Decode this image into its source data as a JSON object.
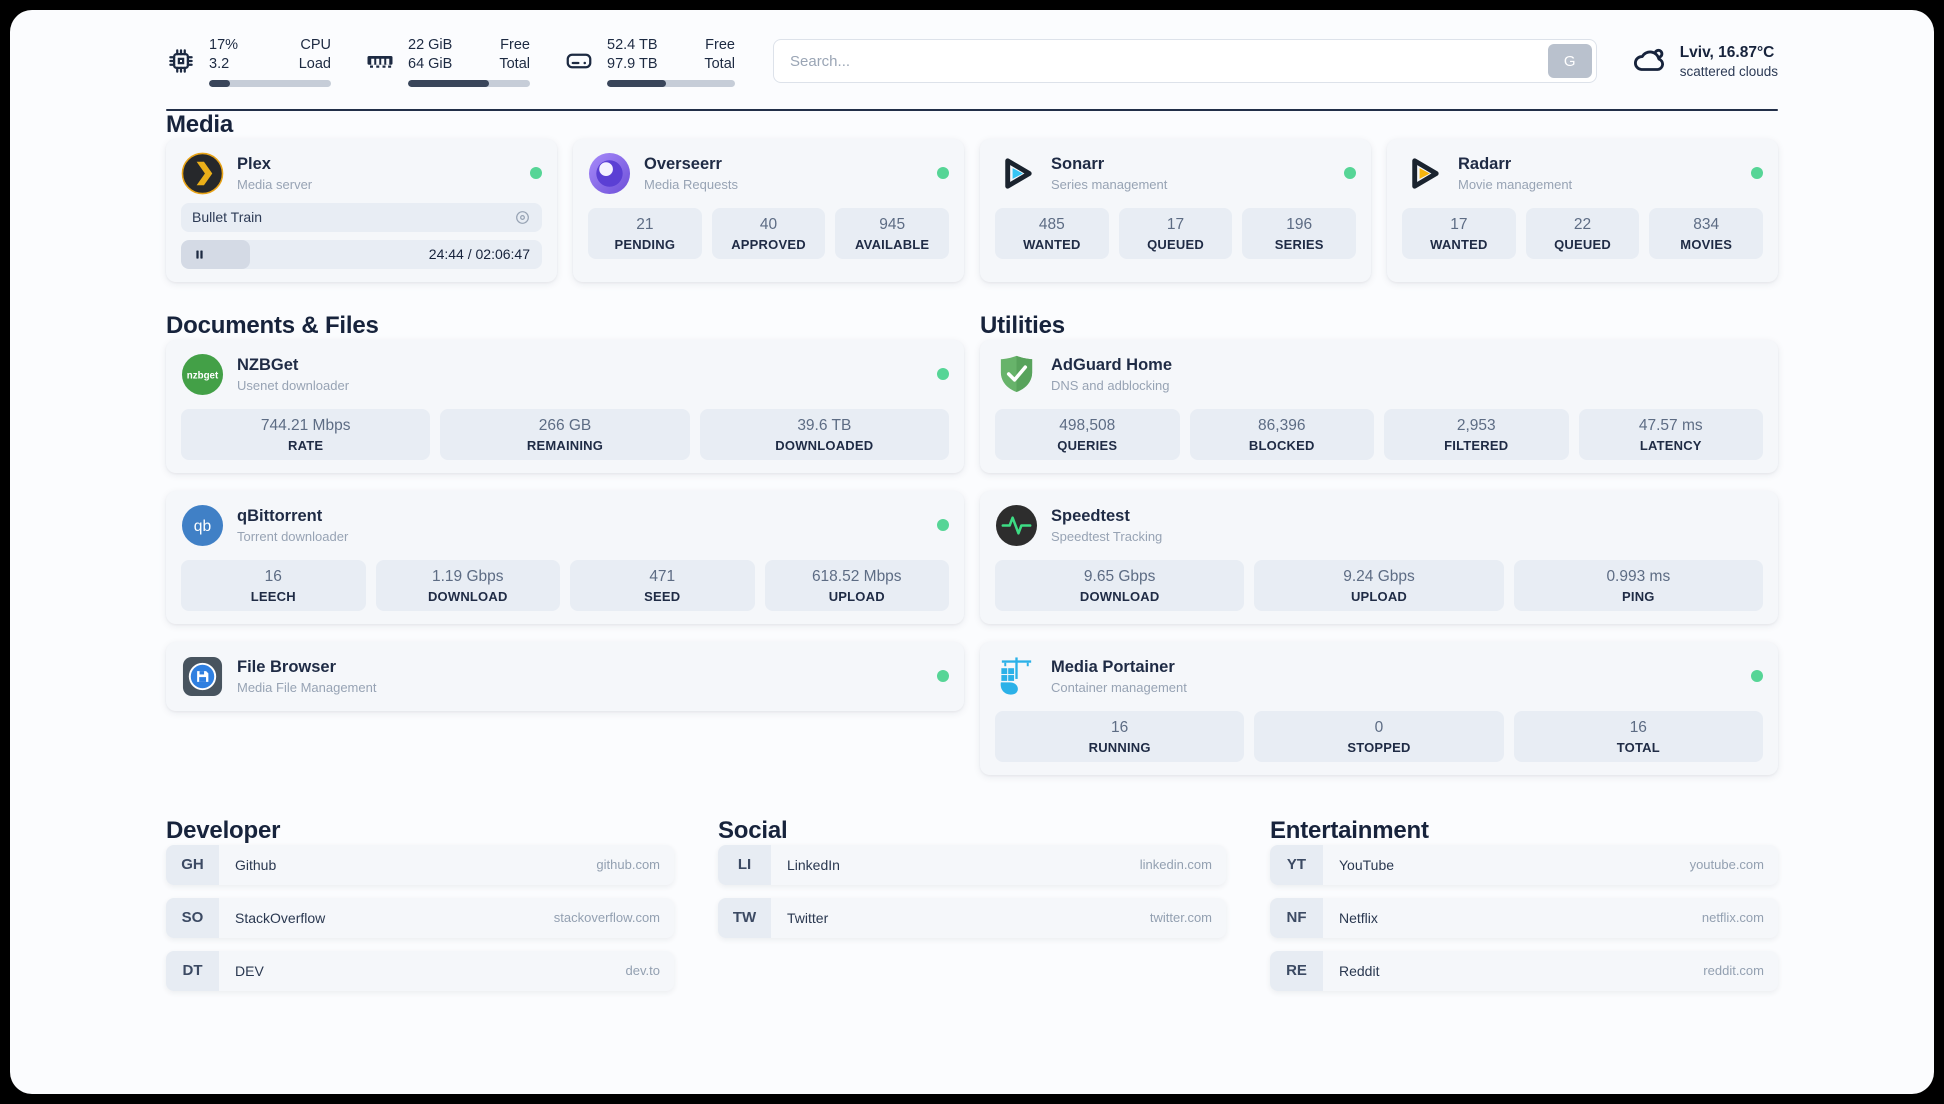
{
  "theme": {
    "status_online_color": "#56d596",
    "accent_dark": "#1d2a42",
    "card_bg": "#f5f7fa",
    "stat_bg": "#e8edf4"
  },
  "header": {
    "cpu": {
      "value_top": "17%",
      "value_bottom": "3.2",
      "label_top": "CPU",
      "label_bottom": "Load",
      "progress": 17
    },
    "memory": {
      "value_top": "22 GiB",
      "value_bottom": "64 GiB",
      "label_top": "Free",
      "label_bottom": "Total",
      "progress": 66
    },
    "disk": {
      "value_top": "52.4 TB",
      "value_bottom": "97.9 TB",
      "label_top": "Free",
      "label_bottom": "Total",
      "progress": 46
    },
    "search": {
      "placeholder": "Search...",
      "button_label": "G"
    },
    "weather": {
      "icon": "cloud-icon",
      "location": "Lviv, 16.87°C",
      "condition": "scattered clouds"
    }
  },
  "media": {
    "title": "Media",
    "plex": {
      "icon": "plex-icon",
      "title": "Plex",
      "subtitle": "Media server",
      "now_playing": "Bullet Train",
      "time": "24:44 / 02:06:47",
      "progress": 19
    },
    "overseerr": {
      "icon": "overseerr-icon",
      "title": "Overseerr",
      "subtitle": "Media Requests",
      "stats": [
        {
          "value": "21",
          "label": "PENDING"
        },
        {
          "value": "40",
          "label": "APPROVED"
        },
        {
          "value": "945",
          "label": "AVAILABLE"
        }
      ]
    },
    "sonarr": {
      "icon": "sonarr-icon",
      "title": "Sonarr",
      "subtitle": "Series management",
      "stats": [
        {
          "value": "485",
          "label": "WANTED"
        },
        {
          "value": "17",
          "label": "QUEUED"
        },
        {
          "value": "196",
          "label": "SERIES"
        }
      ]
    },
    "radarr": {
      "icon": "radarr-icon",
      "title": "Radarr",
      "subtitle": "Movie management",
      "stats": [
        {
          "value": "17",
          "label": "WANTED"
        },
        {
          "value": "22",
          "label": "QUEUED"
        },
        {
          "value": "834",
          "label": "MOVIES"
        }
      ]
    }
  },
  "documents": {
    "title": "Documents & Files",
    "nzbget": {
      "icon": "nzbget-icon",
      "icon_text": "nzbget",
      "title": "NZBGet",
      "subtitle": "Usenet downloader",
      "stats": [
        {
          "value": "744.21 Mbps",
          "label": "RATE"
        },
        {
          "value": "266 GB",
          "label": "REMAINING"
        },
        {
          "value": "39.6 TB",
          "label": "DOWNLOADED"
        }
      ]
    },
    "qbittorrent": {
      "icon": "qbittorrent-icon",
      "icon_text": "qb",
      "title": "qBittorrent",
      "subtitle": "Torrent downloader",
      "stats": [
        {
          "value": "16",
          "label": "LEECH"
        },
        {
          "value": "1.19 Gbps",
          "label": "DOWNLOAD"
        },
        {
          "value": "471",
          "label": "SEED"
        },
        {
          "value": "618.52 Mbps",
          "label": "UPLOAD"
        }
      ]
    },
    "filebrowser": {
      "icon": "filebrowser-icon",
      "title": "File Browser",
      "subtitle": "Media File Management"
    }
  },
  "utilities": {
    "title": "Utilities",
    "adguard": {
      "icon": "adguard-icon",
      "title": "AdGuard Home",
      "subtitle": "DNS and adblocking",
      "stats": [
        {
          "value": "498,508",
          "label": "QUERIES"
        },
        {
          "value": "86,396",
          "label": "BLOCKED"
        },
        {
          "value": "2,953",
          "label": "FILTERED"
        },
        {
          "value": "47.57 ms",
          "label": "LATENCY"
        }
      ]
    },
    "speedtest": {
      "icon": "speedtest-icon",
      "title": "Speedtest",
      "subtitle": "Speedtest Tracking",
      "stats": [
        {
          "value": "9.65 Gbps",
          "label": "DOWNLOAD"
        },
        {
          "value": "9.24 Gbps",
          "label": "UPLOAD"
        },
        {
          "value": "0.993 ms",
          "label": "PING"
        }
      ]
    },
    "portainer": {
      "icon": "portainer-icon",
      "title": "Media Portainer",
      "subtitle": "Container management",
      "stats": [
        {
          "value": "16",
          "label": "RUNNING"
        },
        {
          "value": "0",
          "label": "STOPPED"
        },
        {
          "value": "16",
          "label": "TOTAL"
        }
      ]
    }
  },
  "bookmarks": {
    "developer": {
      "title": "Developer",
      "items": [
        {
          "abbr": "GH",
          "name": "Github",
          "url": "github.com"
        },
        {
          "abbr": "SO",
          "name": "StackOverflow",
          "url": "stackoverflow.com"
        },
        {
          "abbr": "DT",
          "name": "DEV",
          "url": "dev.to"
        }
      ]
    },
    "social": {
      "title": "Social",
      "items": [
        {
          "abbr": "LI",
          "name": "LinkedIn",
          "url": "linkedin.com"
        },
        {
          "abbr": "TW",
          "name": "Twitter",
          "url": "twitter.com"
        }
      ]
    },
    "entertainment": {
      "title": "Entertainment",
      "items": [
        {
          "abbr": "YT",
          "name": "YouTube",
          "url": "youtube.com"
        },
        {
          "abbr": "NF",
          "name": "Netflix",
          "url": "netflix.com"
        },
        {
          "abbr": "RE",
          "name": "Reddit",
          "url": "reddit.com"
        }
      ]
    }
  }
}
